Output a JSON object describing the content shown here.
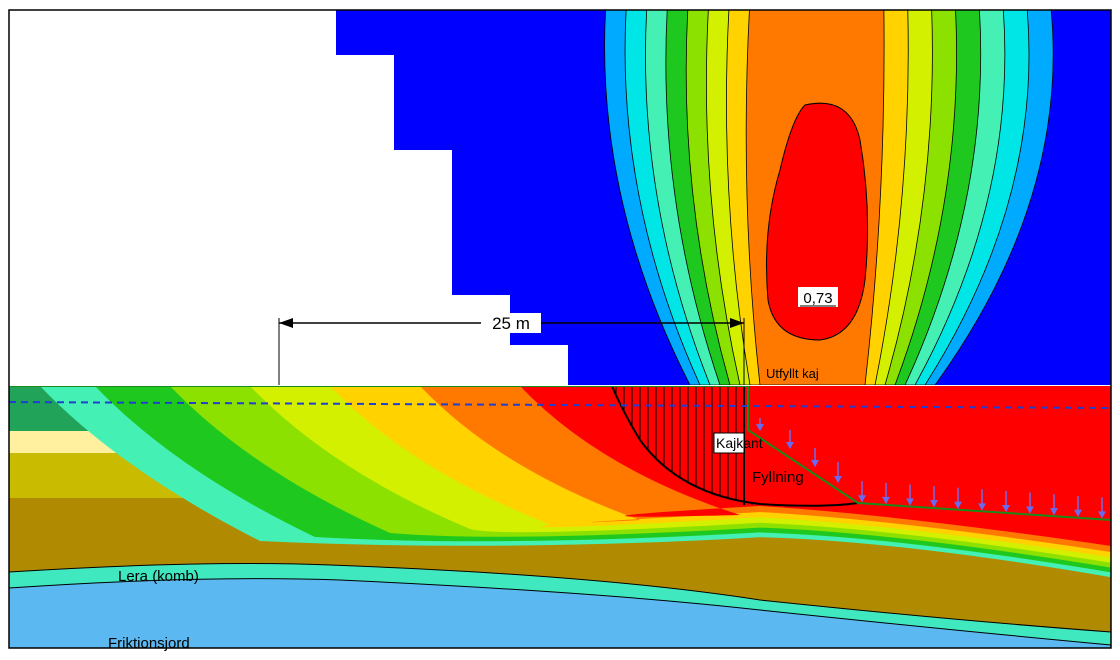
{
  "title": "",
  "labels": {
    "fos_value": "0,73",
    "dimension": "25 m",
    "utfyllt_kaj": "Utfyllt kaj",
    "kajkant": "Kajkant",
    "fyllning": "Fyllning",
    "lera": "Lera (komb)",
    "friktionsjord": "Friktionsjord"
  },
  "colors": {
    "grid_blue": "#0000ff",
    "water": "#c8ecf7",
    "clay": "#b08a00",
    "friction_soil": "#5cb8f0",
    "load_arrows": "#6a6af0",
    "water_table": "#1f3fd0"
  },
  "contour_scale": [
    "#0000ff",
    "#00aaff",
    "#00e6e6",
    "#44f0b4",
    "#1ec81e",
    "#8ce100",
    "#d2f000",
    "#ffd200",
    "#ff7800",
    "#ff0000"
  ]
}
